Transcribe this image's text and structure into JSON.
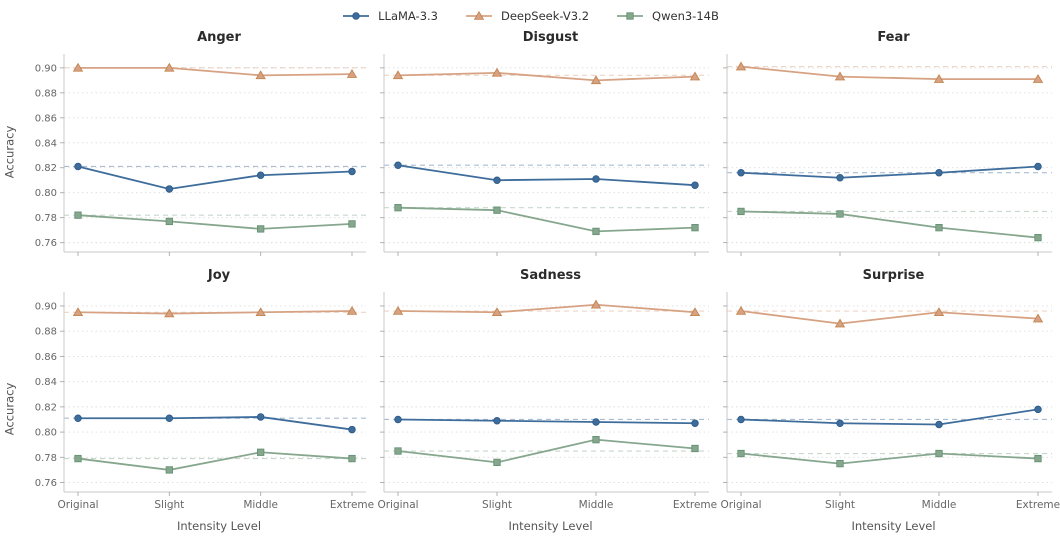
{
  "figure": {
    "background": "#ffffff"
  },
  "legend": {
    "position": "top center",
    "items": [
      {
        "label": "LLaMA-3.3",
        "marker": "circle",
        "color": "#3e6d9c",
        "edge": "#2f5b88"
      },
      {
        "label": "DeepSeek-V3.2",
        "marker": "triangle",
        "color": "#d7a283",
        "edge": "#c2854f"
      },
      {
        "label": "Qwen3-14B",
        "marker": "square",
        "color": "#86a78e",
        "edge": "#659274"
      }
    ]
  },
  "axes": {
    "ylabel": "Accuracy",
    "xlabel": "Intensity Level",
    "categories": [
      "Original",
      "Slight",
      "Middle",
      "Extreme"
    ],
    "yticks": [
      0.76,
      0.78,
      0.8,
      0.82,
      0.84,
      0.86,
      0.88,
      0.9
    ],
    "ylim": [
      0.7525,
      0.9095
    ],
    "grid": "dotted horizontal gridlines at each y tick",
    "baselines": "dashed horizontal line at each series' Original value",
    "grid_color": "#dcdcdc",
    "spine_color": "#c8c8c8",
    "tick_color": "#aaaaaa",
    "tick_label_color": "#666666"
  },
  "chart_data": [
    {
      "type": "line",
      "title": "Anger",
      "categories": [
        "Original",
        "Slight",
        "Middle",
        "Extreme"
      ],
      "xlabel": "Intensity Level",
      "ylabel": "Accuracy",
      "ylim": [
        0.7525,
        0.9095
      ],
      "series": [
        {
          "name": "LLaMA-3.3",
          "values": [
            0.821,
            0.803,
            0.814,
            0.817
          ]
        },
        {
          "name": "DeepSeek-V3.2",
          "values": [
            0.9,
            0.9,
            0.894,
            0.895
          ]
        },
        {
          "name": "Qwen3-14B",
          "values": [
            0.782,
            0.777,
            0.771,
            0.775
          ]
        }
      ]
    },
    {
      "type": "line",
      "title": "Disgust",
      "categories": [
        "Original",
        "Slight",
        "Middle",
        "Extreme"
      ],
      "xlabel": "Intensity Level",
      "ylabel": "Accuracy",
      "ylim": [
        0.7525,
        0.9095
      ],
      "series": [
        {
          "name": "LLaMA-3.3",
          "values": [
            0.822,
            0.81,
            0.811,
            0.806
          ]
        },
        {
          "name": "DeepSeek-V3.2",
          "values": [
            0.894,
            0.896,
            0.89,
            0.893
          ]
        },
        {
          "name": "Qwen3-14B",
          "values": [
            0.788,
            0.786,
            0.769,
            0.772
          ]
        }
      ]
    },
    {
      "type": "line",
      "title": "Fear",
      "categories": [
        "Original",
        "Slight",
        "Middle",
        "Extreme"
      ],
      "xlabel": "Intensity Level",
      "ylabel": "Accuracy",
      "ylim": [
        0.7525,
        0.9095
      ],
      "series": [
        {
          "name": "LLaMA-3.3",
          "values": [
            0.816,
            0.812,
            0.816,
            0.821
          ]
        },
        {
          "name": "DeepSeek-V3.2",
          "values": [
            0.901,
            0.893,
            0.891,
            0.891
          ]
        },
        {
          "name": "Qwen3-14B",
          "values": [
            0.785,
            0.783,
            0.772,
            0.764
          ]
        }
      ]
    },
    {
      "type": "line",
      "title": "Joy",
      "categories": [
        "Original",
        "Slight",
        "Middle",
        "Extreme"
      ],
      "xlabel": "Intensity Level",
      "ylabel": "Accuracy",
      "ylim": [
        0.7525,
        0.9095
      ],
      "series": [
        {
          "name": "LLaMA-3.3",
          "values": [
            0.811,
            0.811,
            0.812,
            0.802
          ]
        },
        {
          "name": "DeepSeek-V3.2",
          "values": [
            0.895,
            0.894,
            0.895,
            0.896
          ]
        },
        {
          "name": "Qwen3-14B",
          "values": [
            0.779,
            0.77,
            0.784,
            0.779
          ]
        }
      ]
    },
    {
      "type": "line",
      "title": "Sadness",
      "categories": [
        "Original",
        "Slight",
        "Middle",
        "Extreme"
      ],
      "xlabel": "Intensity Level",
      "ylabel": "Accuracy",
      "ylim": [
        0.7525,
        0.9095
      ],
      "series": [
        {
          "name": "LLaMA-3.3",
          "values": [
            0.81,
            0.809,
            0.808,
            0.807
          ]
        },
        {
          "name": "DeepSeek-V3.2",
          "values": [
            0.896,
            0.895,
            0.901,
            0.895
          ]
        },
        {
          "name": "Qwen3-14B",
          "values": [
            0.785,
            0.776,
            0.794,
            0.787
          ]
        }
      ]
    },
    {
      "type": "line",
      "title": "Surprise",
      "categories": [
        "Original",
        "Slight",
        "Middle",
        "Extreme"
      ],
      "xlabel": "Intensity Level",
      "ylabel": "Accuracy",
      "ylim": [
        0.7525,
        0.9095
      ],
      "series": [
        {
          "name": "LLaMA-3.3",
          "values": [
            0.81,
            0.807,
            0.806,
            0.818
          ]
        },
        {
          "name": "DeepSeek-V3.2",
          "values": [
            0.896,
            0.886,
            0.895,
            0.89
          ]
        },
        {
          "name": "Qwen3-14B",
          "values": [
            0.783,
            0.775,
            0.783,
            0.779
          ]
        }
      ]
    }
  ]
}
